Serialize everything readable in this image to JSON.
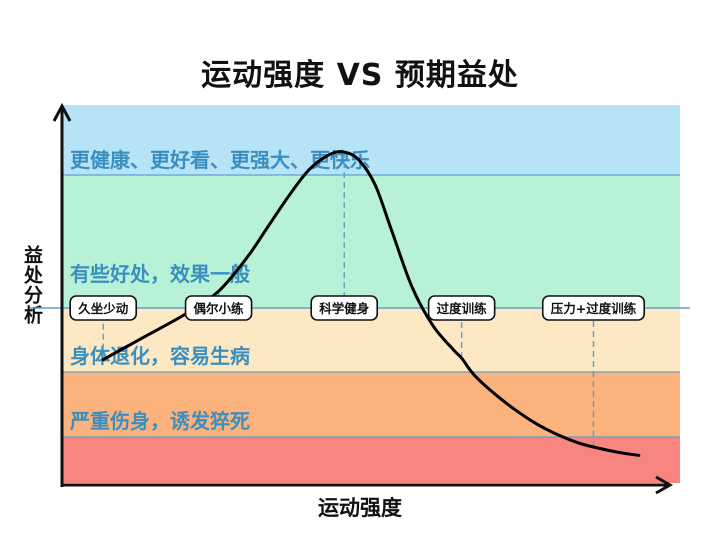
{
  "title": "运动强度 VS 预期益处",
  "xlabel": "运动强度",
  "ylabel": "益处分析",
  "colors": {
    "zone_great": "#b7e3f7",
    "zone_good": "#b7f2d6",
    "zone_decline": "#fde8c4",
    "zone_harm": "#fbb27c",
    "zone_danger": "#f88580",
    "zone_text": "#3b8fbf",
    "divider": "#5f9ed1",
    "curve": "#000000"
  },
  "chart_data": {
    "type": "line",
    "title": "运动强度 VS 预期益处",
    "xlabel": "运动强度",
    "ylabel": "益处分析",
    "zones": [
      {
        "label": "更健康、更好看、更强大、更快乐",
        "color": "#b7e3f7"
      },
      {
        "label": "有些好处，效果一般",
        "color": "#b7f2d6"
      },
      {
        "label": "身体退化，容易生病",
        "color": "#fde8c4"
      },
      {
        "label": "严重伤身，诱发猝死",
        "color": "#fbb27c"
      },
      {
        "label": "",
        "color": "#f88580"
      }
    ],
    "stages": [
      "久坐少动",
      "偶尔小练",
      "科学健身",
      "过度训练",
      "压力+过度训练"
    ],
    "stage_x": [
      1.0,
      3.8,
      6.85,
      9.7,
      12.9
    ],
    "xlim": [
      0,
      15
    ],
    "ylim": [
      0,
      5
    ],
    "series": [
      {
        "x": [
          1.0,
          2.0,
          3.0,
          3.8,
          4.5,
          5.0,
          5.5,
          6.0,
          6.5,
          6.85,
          7.2,
          7.6,
          8.0,
          8.5,
          9.0,
          9.5,
          9.7,
          10.0,
          10.5,
          11.0,
          11.5,
          12.0,
          12.5,
          12.9,
          13.5,
          14.0
        ],
        "y": [
          1.65,
          1.95,
          2.25,
          2.55,
          3.0,
          3.4,
          3.8,
          4.15,
          4.35,
          4.38,
          4.28,
          3.95,
          3.35,
          2.6,
          2.1,
          1.78,
          1.67,
          1.45,
          1.2,
          0.99,
          0.81,
          0.67,
          0.56,
          0.5,
          0.43,
          0.39
        ]
      }
    ],
    "grid": false
  }
}
